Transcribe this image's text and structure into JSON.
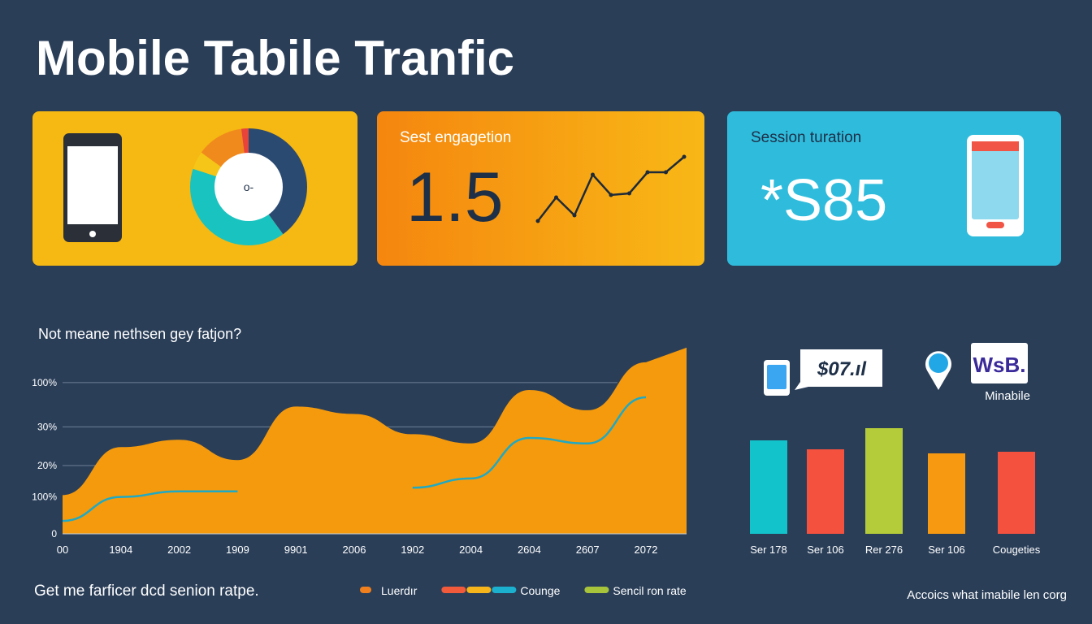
{
  "title": "Mobile Tabile Tranfic",
  "cards": [
    {
      "title": "Sest engagetion",
      "value": "1.5"
    },
    {
      "title": "Session turation",
      "value": "*S85"
    }
  ],
  "chart_data": [
    {
      "type": "pie",
      "center_label": "o-",
      "values": [
        40,
        40,
        5,
        13,
        2
      ],
      "colors": [
        "#2b4a72",
        "#19c3c0",
        "#f5c518",
        "#f08a1c",
        "#e8443a"
      ]
    },
    {
      "type": "line",
      "values": [
        0,
        29,
        7,
        57,
        32,
        34,
        60,
        60,
        79
      ],
      "color": "#1e2a38"
    },
    {
      "type": "area",
      "title": "Not meane nethsen gey fatjon?",
      "categories": [
        "00",
        "1904",
        "2002",
        "1909",
        "9901",
        "2006",
        "1902",
        "2004",
        "2604",
        "2607",
        "2072"
      ],
      "ylim": [
        0,
        100
      ],
      "yticks": [
        0,
        {
          "value": 20,
          "label": "100%"
        },
        {
          "value": 37,
          "label": "20%"
        },
        {
          "value": 58,
          "label": "30%"
        },
        {
          "value": 82,
          "label": "100%"
        }
      ],
      "series": [
        {
          "type": "area",
          "color": "#f59a0c",
          "values": [
            21,
            47,
            51,
            40,
            69,
            65,
            54,
            49,
            78,
            67,
            93
          ]
        },
        {
          "type": "line",
          "color": "#1fa9c4",
          "values": [
            7,
            20,
            23,
            23,
            null,
            null,
            25,
            30,
            52,
            49,
            74
          ]
        }
      ],
      "legend": [
        {
          "name": "Luerdır",
          "colors": [
            "#f0801e"
          ]
        },
        {
          "name": "Counge",
          "colors": [
            "#f25a3c",
            "#f5b51b",
            "#1cb0cf"
          ]
        },
        {
          "name": "Sencil ron rate",
          "colors": [
            "#a8c43a"
          ]
        }
      ]
    },
    {
      "type": "bar",
      "categories": [
        "Ser 178",
        "Ser 106",
        "Rer 276",
        "Ser 106",
        "Cougeties"
      ],
      "values": [
        115,
        104,
        130,
        99,
        101
      ],
      "colors": [
        "#13c3cc",
        "#f4513f",
        "#b5cc3a",
        "#f79a12",
        "#f4513f"
      ]
    }
  ],
  "widgets": {
    "price": "$07.ıl",
    "logo": "WsB.",
    "logo_caption": "Minabile"
  },
  "footer": {
    "left": "Get me farficer dcd senion ratpe.",
    "right": "Accoics what imabile len corg"
  }
}
